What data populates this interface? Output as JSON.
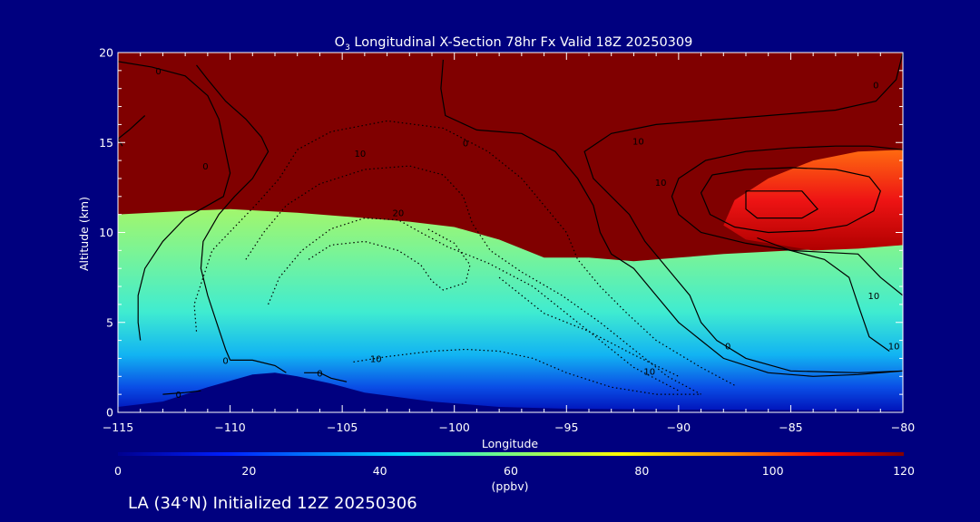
{
  "chart_data": {
    "type": "heatmap",
    "title_prefix": "O",
    "title_sub": "3",
    "title_rest": " Longitudinal X-Section 78hr  Fx Valid 18Z 20250309",
    "xlabel": "Longitude",
    "ylabel": "Altitude (km)",
    "xlim": [
      -115,
      -80
    ],
    "ylim": [
      0,
      20
    ],
    "x_ticks": [
      -115,
      -110,
      -105,
      -100,
      -95,
      -90,
      -85,
      -80
    ],
    "x_tick_labels": [
      "−115",
      "−110",
      "−105",
      "−100",
      "−95",
      "−90",
      "−85",
      "−80"
    ],
    "y_ticks": [
      0,
      5,
      10,
      15,
      20
    ],
    "y_tick_labels": [
      "0",
      "5",
      "10",
      "15",
      "20"
    ],
    "colorbar": {
      "min": 0,
      "max": 120,
      "ticks": [
        0,
        20,
        40,
        60,
        80,
        100,
        120
      ],
      "tick_labels": [
        "0",
        "20",
        "40",
        "60",
        "80",
        "100",
        "120"
      ],
      "unit_label": "(ppbv)"
    },
    "stratosphere_boundary": [
      [
        -115,
        11.0
      ],
      [
        -112,
        11.2
      ],
      [
        -110,
        11.3
      ],
      [
        -107,
        11.1
      ],
      [
        -105,
        10.9
      ],
      [
        -102,
        10.6
      ],
      [
        -100,
        10.3
      ],
      [
        -98,
        9.6
      ],
      [
        -96,
        8.6
      ],
      [
        -94,
        8.6
      ],
      [
        -92,
        8.4
      ],
      [
        -90,
        8.6
      ],
      [
        -88,
        8.8
      ],
      [
        -85,
        9.0
      ],
      [
        -83,
        9.1
      ],
      [
        -80,
        9.3
      ]
    ],
    "enhanced_region": [
      [
        -86,
        13.0
      ],
      [
        -84,
        14.0
      ],
      [
        -82,
        14.5
      ],
      [
        -80,
        14.6
      ],
      [
        -80,
        9.3
      ],
      [
        -82,
        9.1
      ],
      [
        -84,
        9.0
      ],
      [
        -87,
        9.6
      ],
      [
        -88,
        10.4
      ],
      [
        -87.5,
        11.8
      ]
    ],
    "terrain": [
      [
        -115,
        0.3
      ],
      [
        -113,
        0.6
      ],
      [
        -111,
        1.4
      ],
      [
        -109,
        2.1
      ],
      [
        -108,
        2.2
      ],
      [
        -107,
        2.0
      ],
      [
        -105.5,
        1.6
      ],
      [
        -104,
        1.1
      ],
      [
        -101,
        0.6
      ],
      [
        -98,
        0.3
      ],
      [
        -95,
        0.2
      ],
      [
        -90,
        0.15
      ],
      [
        -80,
        0.1
      ]
    ],
    "contours_solid": [
      [
        [
          -115,
          19.5
        ],
        [
          -113.5,
          19.2
        ],
        [
          -112,
          18.7
        ],
        [
          -111,
          17.6
        ],
        [
          -110.5,
          16.3
        ],
        [
          -110.2,
          14.5
        ],
        [
          -110,
          13.3
        ],
        [
          -110.3,
          12.0
        ],
        [
          -111,
          11.5
        ],
        [
          -112,
          10.8
        ],
        [
          -113,
          9.5
        ],
        [
          -113.8,
          8.0
        ],
        [
          -114.1,
          6.5
        ],
        [
          -114.1,
          5.0
        ],
        [
          -114,
          4.0
        ]
      ],
      [
        [
          -113.8,
          16.5
        ],
        [
          -114.5,
          15.7
        ],
        [
          -115,
          15.2
        ],
        [
          -114.8,
          14.8
        ]
      ],
      [
        [
          -111.5,
          19.3
        ],
        [
          -111,
          18.5
        ],
        [
          -110.2,
          17.3
        ],
        [
          -109.3,
          16.3
        ],
        [
          -108.6,
          15.3
        ],
        [
          -108.3,
          14.5
        ],
        [
          -109,
          13.0
        ],
        [
          -109.8,
          12.0
        ],
        [
          -110.5,
          11.0
        ],
        [
          -111.2,
          9.5
        ],
        [
          -111.3,
          8.0
        ],
        [
          -111,
          6.5
        ],
        [
          -110.6,
          5.0
        ],
        [
          -110.2,
          3.5
        ],
        [
          -110,
          2.9
        ]
      ],
      [
        [
          -110,
          2.9
        ],
        [
          -109,
          2.9
        ],
        [
          -108,
          2.6
        ],
        [
          -107.5,
          2.2
        ]
      ],
      [
        [
          -113,
          1.0
        ],
        [
          -112,
          1.1
        ],
        [
          -111.3,
          1.2
        ]
      ],
      [
        [
          -106.7,
          2.2
        ],
        [
          -106,
          2.2
        ],
        [
          -105.5,
          1.9
        ],
        [
          -104.8,
          1.7
        ]
      ],
      [
        [
          -100.5,
          19.6
        ],
        [
          -100.6,
          18.0
        ],
        [
          -100.4,
          16.5
        ],
        [
          -99,
          15.7
        ],
        [
          -97,
          15.5
        ],
        [
          -95.5,
          14.5
        ],
        [
          -94.5,
          13.0
        ],
        [
          -93.8,
          11.5
        ],
        [
          -93.5,
          10.0
        ],
        [
          -93,
          8.8
        ],
        [
          -92,
          8.0
        ],
        [
          -91,
          6.5
        ],
        [
          -90,
          5.0
        ],
        [
          -89,
          4.0
        ],
        [
          -88,
          3.0
        ],
        [
          -86,
          2.2
        ],
        [
          -84,
          2.0
        ],
        [
          -82,
          2.1
        ],
        [
          -80,
          2.3
        ]
      ],
      [
        [
          -80,
          20
        ],
        [
          -80.3,
          18.5
        ],
        [
          -81.2,
          17.3
        ],
        [
          -83,
          16.8
        ],
        [
          -86,
          16.5
        ],
        [
          -89,
          16.2
        ],
        [
          -91,
          16.0
        ],
        [
          -93,
          15.5
        ],
        [
          -94.2,
          14.5
        ],
        [
          -93.8,
          13.0
        ],
        [
          -93,
          12.0
        ],
        [
          -92.2,
          11.0
        ],
        [
          -91.5,
          9.5
        ],
        [
          -90.5,
          8.0
        ],
        [
          -89.5,
          6.5
        ],
        [
          -89,
          5.0
        ],
        [
          -88.3,
          4.0
        ],
        [
          -87,
          3.0
        ],
        [
          -85,
          2.3
        ],
        [
          -82,
          2.2
        ],
        [
          -80,
          2.3
        ]
      ],
      [
        [
          -80,
          14.6
        ],
        [
          -81.5,
          14.8
        ],
        [
          -83,
          14.8
        ],
        [
          -85,
          14.7
        ],
        [
          -87,
          14.5
        ],
        [
          -88.8,
          14.0
        ],
        [
          -90,
          13.0
        ],
        [
          -90.3,
          12.0
        ],
        [
          -90,
          11.0
        ],
        [
          -89,
          10.0
        ],
        [
          -87,
          9.4
        ],
        [
          -85,
          9.0
        ],
        [
          -82,
          8.8
        ],
        [
          -81,
          7.5
        ],
        [
          -80,
          6.5
        ]
      ],
      [
        [
          -88.5,
          13.2
        ],
        [
          -89,
          12.2
        ],
        [
          -88.6,
          11.0
        ],
        [
          -87.5,
          10.3
        ],
        [
          -86,
          10.0
        ],
        [
          -84,
          10.1
        ],
        [
          -82.5,
          10.4
        ],
        [
          -81.3,
          11.2
        ],
        [
          -81,
          12.3
        ],
        [
          -81.5,
          13.1
        ],
        [
          -83,
          13.5
        ],
        [
          -85,
          13.6
        ],
        [
          -87,
          13.5
        ],
        [
          -88.5,
          13.2
        ]
      ],
      [
        [
          -87,
          12.3
        ],
        [
          -84.5,
          12.3
        ],
        [
          -83.8,
          11.3
        ],
        [
          -84.5,
          10.8
        ],
        [
          -86.5,
          10.8
        ],
        [
          -87,
          11.3
        ],
        [
          -87,
          12.3
        ]
      ],
      [
        [
          -80.6,
          3.4
        ],
        [
          -81.5,
          4.2
        ],
        [
          -82,
          6.0
        ],
        [
          -82.4,
          7.5
        ],
        [
          -83.5,
          8.5
        ],
        [
          -85,
          9.0
        ],
        [
          -86.5,
          9.7
        ]
      ]
    ],
    "contours_dotted": [
      [
        [
          -111.5,
          4.5
        ],
        [
          -111.6,
          6.0
        ],
        [
          -111.2,
          7.5
        ],
        [
          -110.8,
          9.0
        ],
        [
          -109.8,
          10.3
        ],
        [
          -108.8,
          11.6
        ],
        [
          -107.8,
          13.0
        ],
        [
          -107,
          14.6
        ],
        [
          -105.5,
          15.6
        ],
        [
          -103,
          16.2
        ],
        [
          -100.5,
          15.8
        ],
        [
          -98.5,
          14.5
        ],
        [
          -97,
          13.0
        ],
        [
          -96,
          11.5
        ],
        [
          -95,
          10.0
        ],
        [
          -94.5,
          8.5
        ],
        [
          -93.5,
          7.0
        ],
        [
          -92.3,
          5.5
        ],
        [
          -91,
          4.0
        ],
        [
          -89,
          2.5
        ],
        [
          -87.5,
          1.5
        ]
      ],
      [
        [
          -109.3,
          8.5
        ],
        [
          -108.5,
          10.0
        ],
        [
          -107.5,
          11.5
        ],
        [
          -106,
          12.7
        ],
        [
          -104,
          13.5
        ],
        [
          -102,
          13.7
        ],
        [
          -100.5,
          13.2
        ],
        [
          -99.6,
          12.0
        ],
        [
          -99.2,
          10.5
        ],
        [
          -98.4,
          9.0
        ],
        [
          -97,
          7.8
        ],
        [
          -95.2,
          6.5
        ],
        [
          -93.5,
          5.0
        ],
        [
          -92,
          3.5
        ],
        [
          -90.5,
          2.0
        ],
        [
          -89,
          1.0
        ]
      ],
      [
        [
          -108.3,
          6.0
        ],
        [
          -107.8,
          7.5
        ],
        [
          -106.8,
          9.0
        ],
        [
          -105.5,
          10.2
        ],
        [
          -104,
          10.8
        ],
        [
          -102.5,
          10.7
        ],
        [
          -101.5,
          10.0
        ],
        [
          -100.3,
          9.2
        ],
        [
          -98.5,
          8.3
        ],
        [
          -96.5,
          7.0
        ],
        [
          -95,
          5.5
        ],
        [
          -93.5,
          4.0
        ],
        [
          -92,
          2.5
        ],
        [
          -90,
          1.2
        ]
      ],
      [
        [
          -104.5,
          2.8
        ],
        [
          -103,
          3.1
        ],
        [
          -101,
          3.4
        ],
        [
          -99.5,
          3.5
        ],
        [
          -98,
          3.4
        ],
        [
          -96.5,
          3.0
        ],
        [
          -95,
          2.2
        ],
        [
          -93,
          1.4
        ],
        [
          -91,
          1.0
        ],
        [
          -89,
          1.0
        ]
      ],
      [
        [
          -106.5,
          8.5
        ],
        [
          -105.5,
          9.3
        ],
        [
          -104,
          9.5
        ],
        [
          -102.5,
          9.0
        ],
        [
          -101.5,
          8.2
        ],
        [
          -101,
          7.3
        ],
        [
          -100.5,
          6.8
        ],
        [
          -99.5,
          7.2
        ],
        [
          -99.3,
          8.2
        ],
        [
          -100,
          9.4
        ],
        [
          -101.2,
          10.2
        ]
      ],
      [
        [
          -98,
          7.5
        ],
        [
          -97,
          6.5
        ],
        [
          -96,
          5.5
        ],
        [
          -94,
          4.5
        ],
        [
          -92,
          3.2
        ],
        [
          -90,
          2.0
        ]
      ]
    ],
    "contour_labels": [
      {
        "text": "0",
        "lon": -113.2,
        "lat": 19.0
      },
      {
        "text": "0",
        "lon": -111.1,
        "lat": 13.7
      },
      {
        "text": "0",
        "lon": -110.2,
        "lat": 2.9
      },
      {
        "text": "0",
        "lon": -112.3,
        "lat": 1.0
      },
      {
        "text": "0",
        "lon": -106.0,
        "lat": 2.2
      },
      {
        "text": "0",
        "lon": -99.5,
        "lat": 15.0
      },
      {
        "text": "0",
        "lon": -81.2,
        "lat": 18.2
      },
      {
        "text": "0",
        "lon": -87.8,
        "lat": 3.7
      },
      {
        "text": "10",
        "lon": -104.2,
        "lat": 14.4
      },
      {
        "text": "10",
        "lon": -103.5,
        "lat": 3.0
      },
      {
        "text": "10",
        "lon": -91.3,
        "lat": 2.3
      },
      {
        "text": "10",
        "lon": -91.8,
        "lat": 15.1
      },
      {
        "text": "10",
        "lon": -90.8,
        "lat": 12.8
      },
      {
        "text": "10",
        "lon": -81.3,
        "lat": 6.5
      },
      {
        "text": "10",
        "lon": -80.4,
        "lat": 3.7
      },
      {
        "text": "20",
        "lon": -102.5,
        "lat": 11.1
      }
    ]
  },
  "footer": {
    "init_label": "LA (34°N) Initialized 12Z 20250306"
  },
  "colors": {
    "background": "#00007f",
    "stratosphere": "#800000",
    "terrain": "#00007f",
    "foreground": "#ffffff"
  }
}
